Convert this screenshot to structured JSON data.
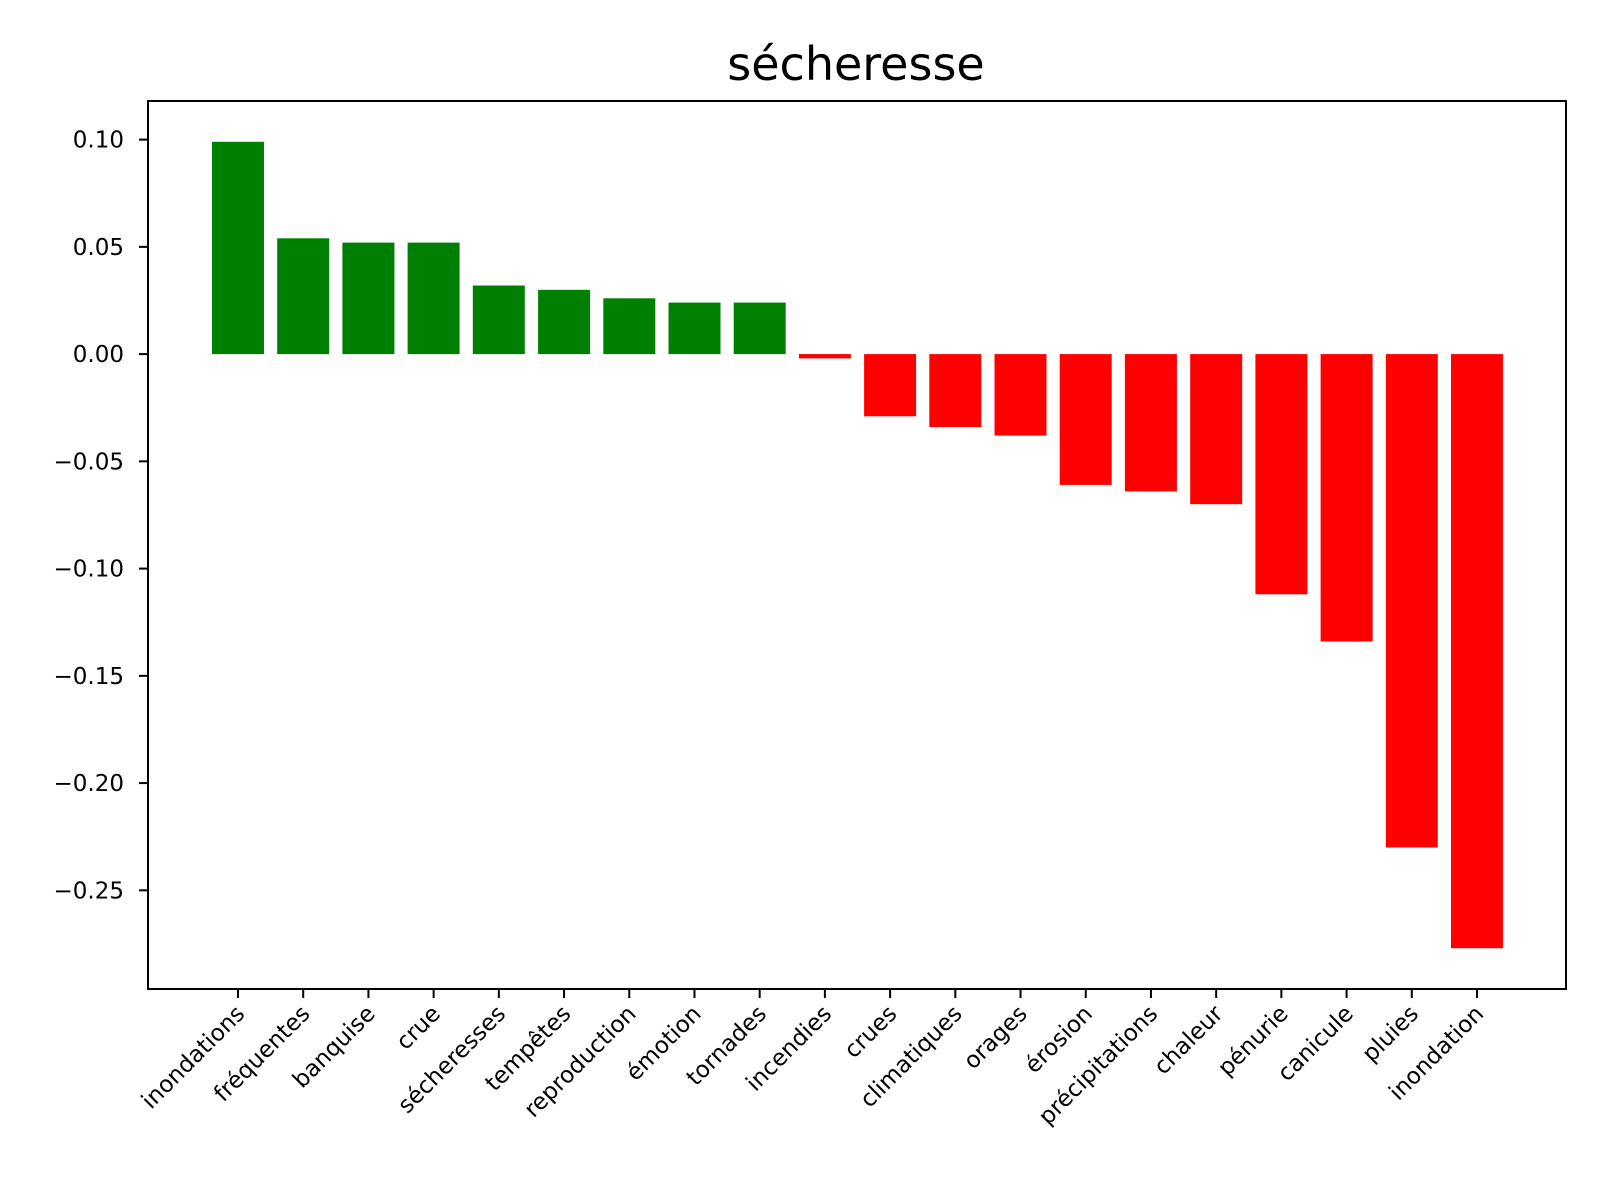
{
  "chart_data": {
    "type": "bar",
    "title": "sécheresse",
    "xlabel": "",
    "ylabel": "",
    "ylim": [
      -0.296,
      0.118
    ],
    "yticks": [
      0.1,
      0.05,
      0.0,
      -0.05,
      -0.1,
      -0.15,
      -0.2,
      -0.25
    ],
    "ytick_labels": [
      "0.10",
      "0.05",
      "0.00",
      "−0.05",
      "−0.10",
      "−0.15",
      "−0.20",
      "−0.25"
    ],
    "categories": [
      "inondations",
      "fréquentes",
      "banquise",
      "crue",
      "sécheresses",
      "tempêtes",
      "reproduction",
      "émotion",
      "tornades",
      "incendies",
      "crues",
      "climatiques",
      "orages",
      "érosion",
      "précipitations",
      "chaleur",
      "pénurie",
      "canicule",
      "pluies",
      "inondation"
    ],
    "values": [
      0.099,
      0.054,
      0.052,
      0.052,
      0.032,
      0.03,
      0.026,
      0.024,
      0.024,
      -0.002,
      -0.029,
      -0.034,
      -0.038,
      -0.061,
      -0.064,
      -0.07,
      -0.112,
      -0.134,
      -0.23,
      -0.277
    ],
    "colors": {
      "positive": "#008000",
      "negative": "#ff0000"
    },
    "grid": false,
    "legend": "none"
  }
}
